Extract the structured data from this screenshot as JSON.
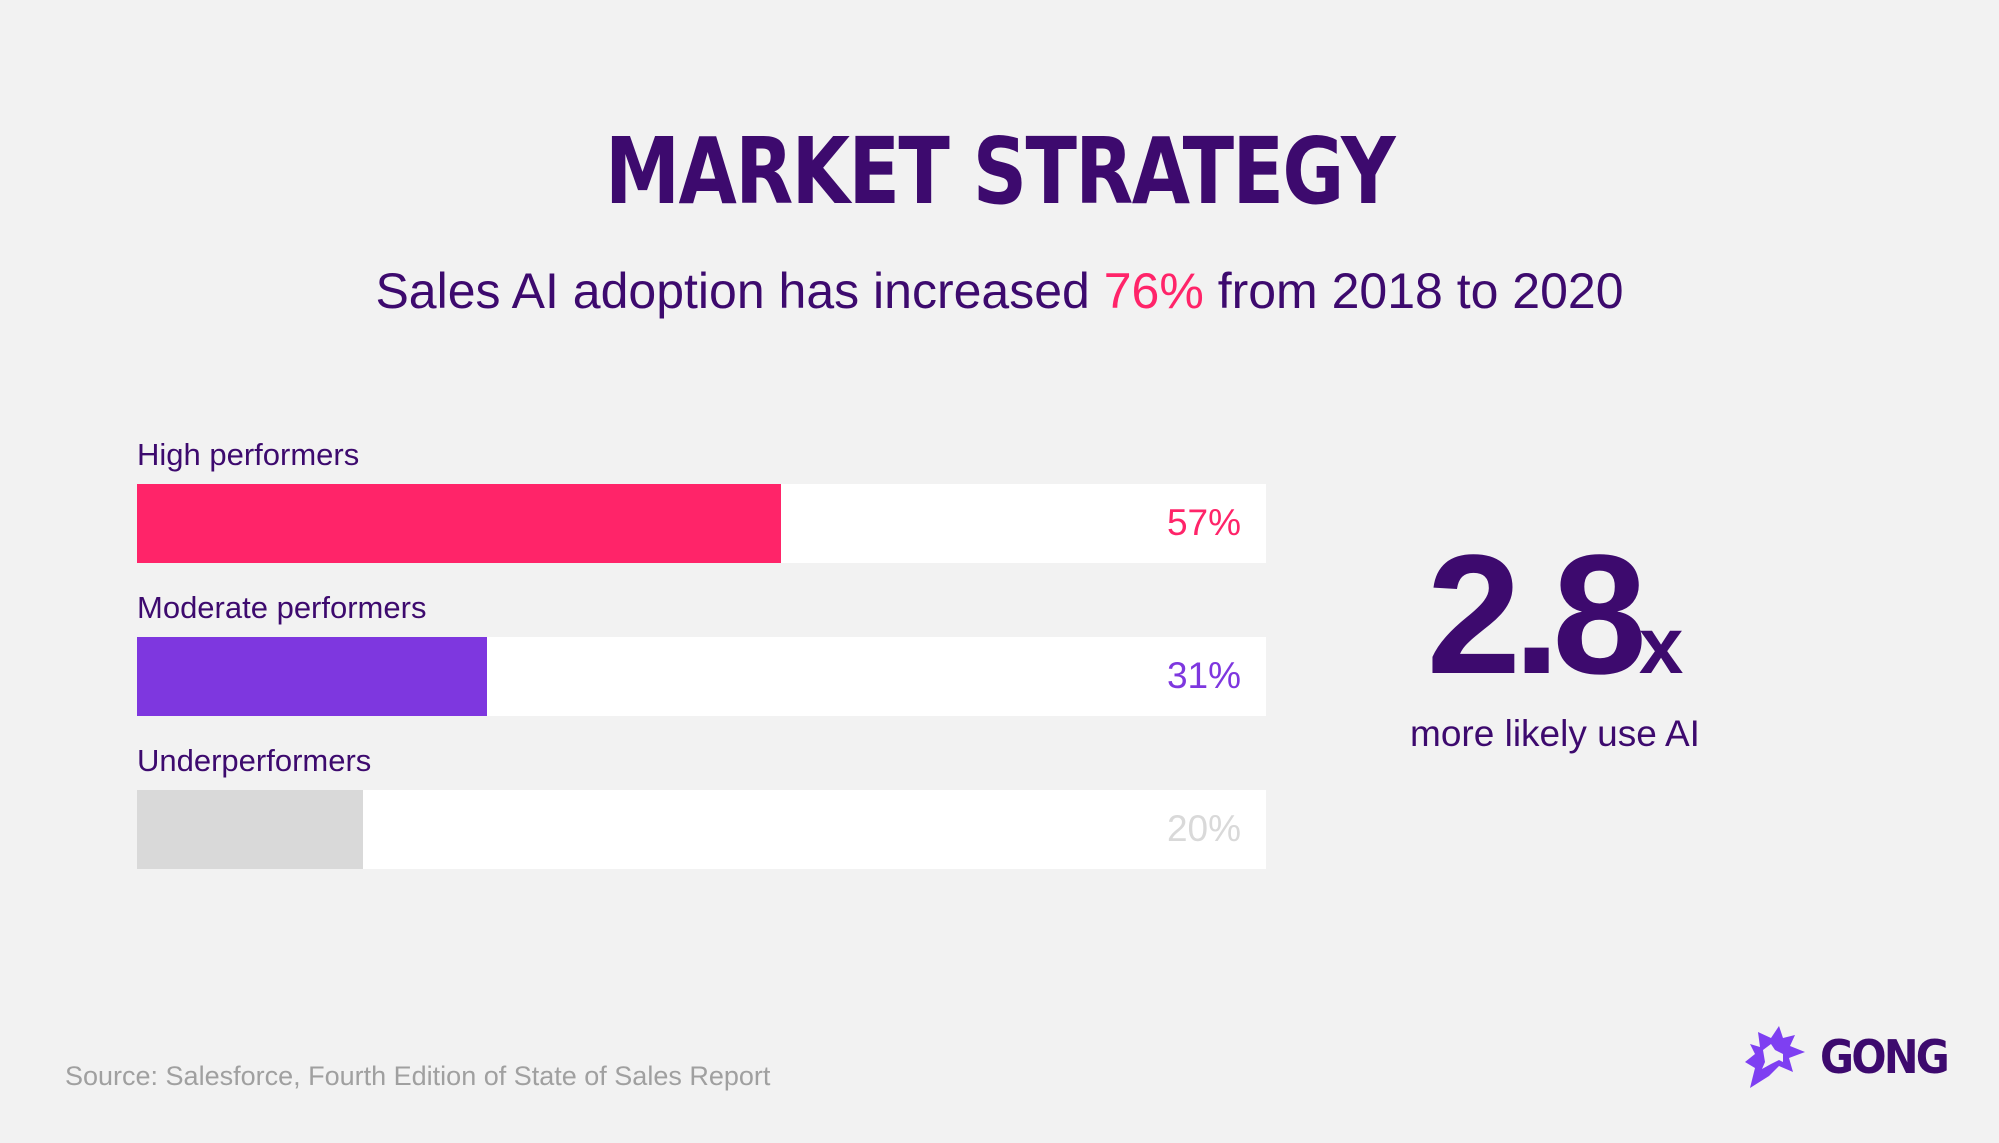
{
  "title": "MARKET STRATEGY",
  "subtitle": {
    "before": "Sales AI adoption has increased ",
    "highlight": "76%",
    "after": " from 2018 to 2020"
  },
  "chart_data": {
    "type": "bar",
    "orientation": "horizontal",
    "categories": [
      "High performers",
      "Moderate performers",
      "Underperformers"
    ],
    "values": [
      57,
      31,
      20
    ],
    "data_labels": [
      "57%",
      "31%",
      "20%"
    ],
    "colors": [
      "#ff2469",
      "#7e37df",
      "#d9d9d9"
    ],
    "label_colors": [
      "#ff2469",
      "#7e37df",
      "#d9d9d9"
    ],
    "xlim": [
      0,
      100
    ]
  },
  "callout": {
    "value": "2.8",
    "suffix": "x",
    "caption": "more likely use AI"
  },
  "source": "Source: Salesforce, Fourth Edition of State of Sales Report",
  "logo": {
    "text": "GONG",
    "icon": "starburst-icon",
    "color": "#7e3ff2"
  },
  "colors": {
    "primary": "#3d0a6e",
    "accent": "#ff2469",
    "background": "#f2f2f2"
  }
}
